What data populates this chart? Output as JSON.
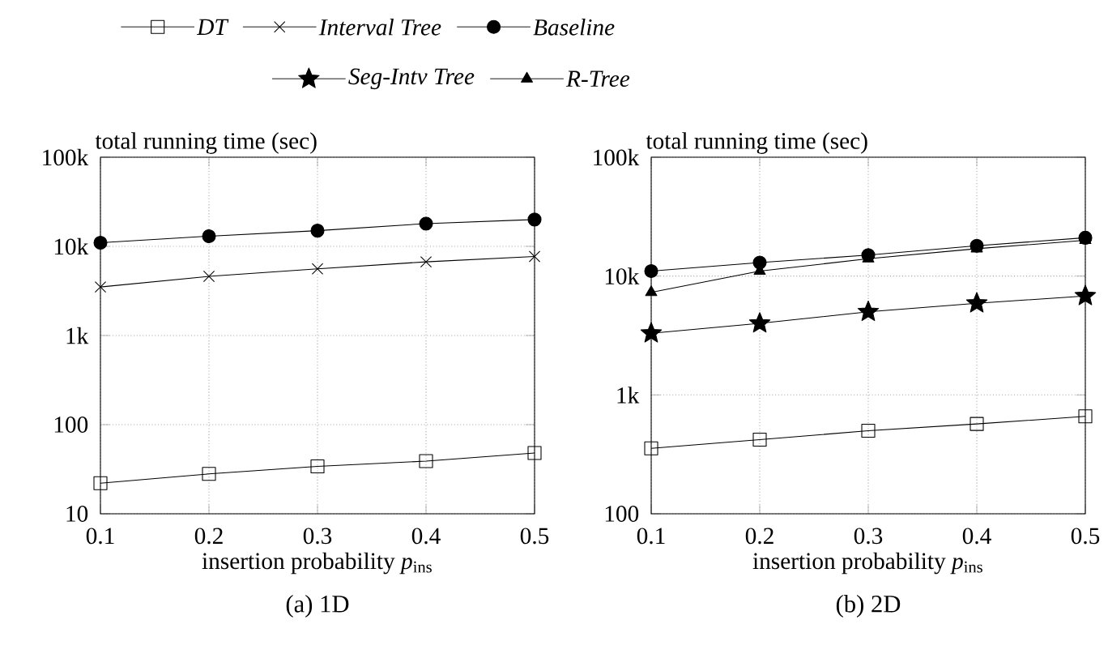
{
  "chart_data": [
    {
      "type": "line",
      "title": "(a) 1D",
      "xlabel": "insertion probability *p*$_{ins}$",
      "ylabel": "total running time (sec)",
      "x": [
        0.1,
        0.2,
        0.3,
        0.4,
        0.5
      ],
      "xlim": [
        0.1,
        0.5
      ],
      "xticks": [
        0.1,
        0.2,
        0.3,
        0.4,
        0.5
      ],
      "ylim": [
        10,
        100000
      ],
      "yticks": [
        10,
        100,
        {
          "value": 1000,
          "label": "1k"
        },
        {
          "value": 10000,
          "label": "10k"
        },
        {
          "value": 100000,
          "label": "100k"
        }
      ],
      "log": "y",
      "grid": true,
      "legend": "top",
      "series": [
        {
          "name": "DT",
          "color": "#000000",
          "marker": "square",
          "values": [
            22,
            28,
            34,
            39,
            48
          ]
        },
        {
          "name": "Interval Tree",
          "color": "#000000",
          "marker": "cross",
          "values": [
            3500,
            4600,
            5600,
            6700,
            7700
          ]
        },
        {
          "name": "Baseline",
          "color": "#000000",
          "marker": "circle",
          "values": [
            11000,
            13000,
            15000,
            18000,
            20000
          ]
        }
      ]
    },
    {
      "type": "line",
      "title": "(b) 2D",
      "xlabel": "insertion probability *p*$_{ins}$",
      "ylabel": "total running time (sec)",
      "x": [
        0.1,
        0.2,
        0.3,
        0.4,
        0.5
      ],
      "xlim": [
        0.1,
        0.5
      ],
      "xticks": [
        0.1,
        0.2,
        0.3,
        0.4,
        0.5
      ],
      "ylim": [
        100,
        100000
      ],
      "yticks": [
        100,
        {
          "value": 1000,
          "label": "1k"
        },
        {
          "value": 10000,
          "label": "10k"
        },
        {
          "value": 100000,
          "label": "100k"
        }
      ],
      "log": "y",
      "grid": true,
      "legend": "top",
      "series": [
        {
          "name": "DT",
          "color": "#000000",
          "marker": "square",
          "values": [
            355,
            420,
            500,
            570,
            660
          ]
        },
        {
          "name": "Seg-Intv Tree",
          "color": "#000000",
          "marker": "star",
          "values": [
            3300,
            4000,
            5000,
            5900,
            6800
          ]
        },
        {
          "name": "R-Tree",
          "color": "#000000",
          "marker": "triangle",
          "values": [
            7300,
            11000,
            14000,
            17000,
            20000
          ]
        },
        {
          "name": "Baseline",
          "color": "#000000",
          "marker": "circle",
          "values": [
            11000,
            13000,
            15000,
            18000,
            21000
          ]
        }
      ]
    }
  ]
}
